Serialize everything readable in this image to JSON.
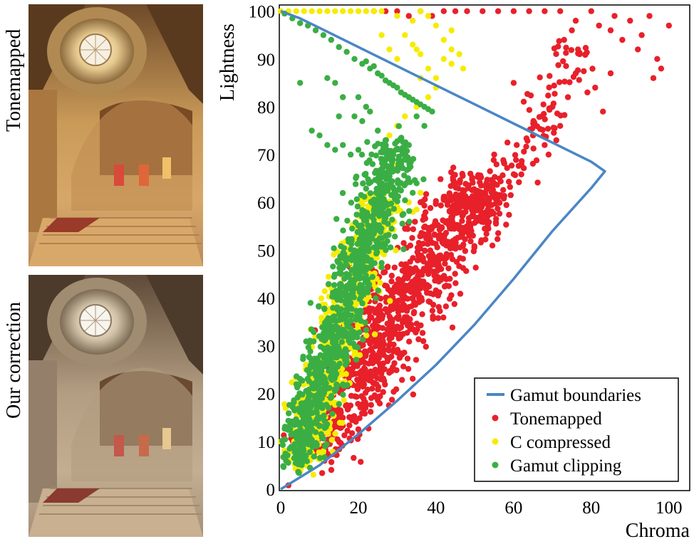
{
  "panels": [
    {
      "label": "Tonemapped"
    },
    {
      "label": "Our correction"
    }
  ],
  "colors": {
    "tonemapped": "#e8202a",
    "c_compressed": "#f6ec00",
    "gamut_clipping": "#3aae44",
    "boundary": "#4a86c5"
  },
  "chart_data": {
    "type": "scatter",
    "xlabel": "Chroma",
    "ylabel": "Lightness",
    "xlim": [
      0,
      105
    ],
    "ylim": [
      0,
      101
    ],
    "xticks": [
      0,
      20,
      40,
      60,
      80,
      100
    ],
    "yticks": [
      0,
      10,
      20,
      30,
      40,
      50,
      60,
      70,
      80,
      90,
      100
    ],
    "legend_position": "bottom-right",
    "series": [
      {
        "name": "Gamut boundaries",
        "kind": "line",
        "x": [
          0,
          10,
          20,
          30,
          40,
          50,
          60,
          70,
          80,
          83.5,
          80,
          70,
          60,
          50,
          40,
          30,
          20,
          10,
          5,
          0
        ],
        "y": [
          0,
          5,
          11.5,
          18.5,
          26,
          34.5,
          44,
          54,
          63,
          66.5,
          68.5,
          72.5,
          76.5,
          80.5,
          84.5,
          88.5,
          92.5,
          96.5,
          98.5,
          100
        ]
      },
      {
        "name": "Tonemapped",
        "kind": "scatter",
        "clusters": [
          {
            "x0": 8,
            "y0": 8,
            "x1": 50,
            "y1": 63,
            "spread": 5,
            "n": 1100
          },
          {
            "x0": 46,
            "y0": 55,
            "x1": 65,
            "y1": 72,
            "spread": 3,
            "n": 90
          },
          {
            "x0": 66,
            "y0": 75,
            "x1": 75,
            "y1": 92,
            "spread": 3,
            "n": 60
          }
        ],
        "points": [
          [
            86,
            99
          ],
          [
            90,
            98
          ],
          [
            95,
            99
          ],
          [
            100,
            97
          ],
          [
            88,
            94
          ],
          [
            93,
            95
          ],
          [
            97,
            90
          ],
          [
            92,
            92
          ],
          [
            85,
            96
          ],
          [
            98,
            88
          ],
          [
            96,
            86
          ],
          [
            75,
            96
          ],
          [
            77,
            91
          ],
          [
            80,
            100
          ],
          [
            82,
            97
          ],
          [
            73,
            94
          ],
          [
            76,
            87
          ],
          [
            81,
            84
          ],
          [
            83,
            79
          ],
          [
            74,
            82
          ],
          [
            70,
            80
          ],
          [
            72,
            76
          ],
          [
            68,
            72
          ],
          [
            69,
            70
          ],
          [
            71,
            73
          ],
          [
            60,
            85
          ],
          [
            65,
            74
          ],
          [
            62,
            68
          ],
          [
            55,
            70
          ],
          [
            24,
            100
          ],
          [
            27,
            100
          ],
          [
            30,
            100
          ],
          [
            33,
            99
          ],
          [
            36,
            100
          ],
          [
            39,
            99
          ],
          [
            42,
            100
          ],
          [
            45,
            100
          ],
          [
            48,
            100
          ],
          [
            52,
            100
          ],
          [
            56,
            100
          ],
          [
            60,
            100
          ],
          [
            64,
            100
          ],
          [
            68,
            100
          ],
          [
            72,
            100
          ],
          [
            76,
            98
          ],
          [
            79,
            83
          ],
          [
            85,
            87
          ]
        ]
      },
      {
        "name": "C compressed",
        "kind": "scatter",
        "clusters": [
          {
            "x0": 5,
            "y0": 5,
            "x1": 26,
            "y1": 62,
            "spread": 3,
            "n": 650
          }
        ],
        "points": [
          [
            0,
            100
          ],
          [
            2,
            100
          ],
          [
            4,
            100
          ],
          [
            6,
            100
          ],
          [
            8,
            100
          ],
          [
            10,
            100
          ],
          [
            12,
            100
          ],
          [
            14,
            100
          ],
          [
            16,
            100
          ],
          [
            18,
            100
          ],
          [
            20,
            100
          ],
          [
            22,
            100
          ],
          [
            24,
            100
          ],
          [
            26,
            100
          ],
          [
            30,
            99
          ],
          [
            34,
            98
          ],
          [
            36,
            100
          ],
          [
            38,
            99
          ],
          [
            40,
            97
          ],
          [
            42,
            94
          ],
          [
            44,
            92
          ],
          [
            46,
            91
          ],
          [
            32,
            95
          ],
          [
            34,
            93
          ],
          [
            36,
            91
          ],
          [
            38,
            88
          ],
          [
            40,
            86
          ],
          [
            30,
            90
          ],
          [
            28,
            92
          ],
          [
            26,
            95
          ],
          [
            36,
            86
          ],
          [
            33,
            82
          ],
          [
            35,
            80
          ],
          [
            32,
            78
          ],
          [
            30,
            76
          ],
          [
            28,
            74
          ],
          [
            27,
            72
          ],
          [
            29,
            68
          ],
          [
            31,
            64
          ],
          [
            33,
            60
          ],
          [
            34,
            58
          ],
          [
            36,
            62
          ],
          [
            42,
            90
          ],
          [
            44,
            89
          ],
          [
            47,
            88
          ],
          [
            40,
            84
          ],
          [
            38,
            82
          ],
          [
            35,
            92
          ],
          [
            44,
            96
          ]
        ]
      },
      {
        "name": "Gamut clipping",
        "kind": "scatter",
        "clusters": [
          {
            "x0": 3,
            "y0": 5,
            "x1": 30,
            "y1": 72,
            "spread": 3,
            "n": 1000
          }
        ],
        "points": [
          [
            1,
            99.5
          ],
          [
            3,
            98.5
          ],
          [
            5,
            97.5
          ],
          [
            7,
            97
          ],
          [
            9,
            96
          ],
          [
            11,
            95
          ],
          [
            13,
            94
          ],
          [
            15,
            92.5
          ],
          [
            17,
            91.5
          ],
          [
            19,
            90
          ],
          [
            21,
            89
          ],
          [
            23,
            88
          ],
          [
            25,
            87
          ],
          [
            27,
            85.5
          ],
          [
            29,
            84.5
          ],
          [
            31,
            83
          ],
          [
            33,
            82
          ],
          [
            35,
            81
          ],
          [
            37,
            80
          ],
          [
            39,
            79
          ],
          [
            22,
            89.5
          ],
          [
            24,
            88.5
          ],
          [
            26,
            86.5
          ],
          [
            28,
            85
          ],
          [
            30,
            84
          ],
          [
            32,
            82.5
          ],
          [
            34,
            81.5
          ],
          [
            36,
            80.5
          ],
          [
            38,
            79.5
          ],
          [
            12,
            86
          ],
          [
            14,
            85
          ],
          [
            5,
            85
          ],
          [
            16,
            82
          ],
          [
            20,
            82
          ],
          [
            22,
            80
          ],
          [
            19,
            78
          ],
          [
            21,
            77
          ],
          [
            23,
            79
          ],
          [
            15,
            78
          ],
          [
            25,
            75
          ],
          [
            27,
            73
          ],
          [
            29,
            70
          ],
          [
            31,
            68
          ],
          [
            33,
            72
          ],
          [
            35,
            78
          ],
          [
            37,
            76
          ],
          [
            34,
            62
          ],
          [
            35,
            64
          ],
          [
            12,
            72
          ],
          [
            14,
            71
          ],
          [
            16,
            72
          ],
          [
            18,
            70
          ],
          [
            20,
            71
          ],
          [
            10,
            74
          ],
          [
            8,
            75
          ]
        ]
      }
    ]
  }
}
